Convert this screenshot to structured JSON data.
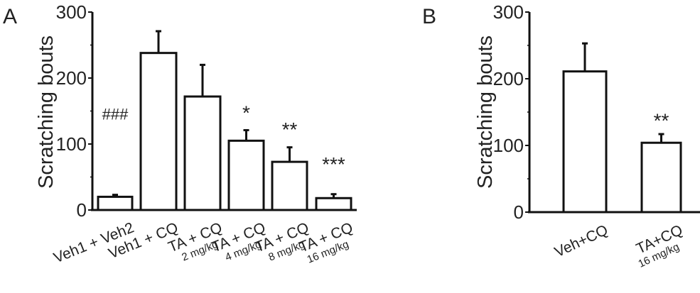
{
  "chart_data": [
    {
      "panel": "A",
      "type": "bar",
      "ylabel": "Scratching bouts",
      "ylim": [
        0,
        300
      ],
      "yticks": [
        "0",
        "100",
        "200",
        "300"
      ],
      "minor_ticks": [
        50,
        150,
        250
      ],
      "categories": [
        {
          "label": "Veh1 + Veh2",
          "sub": ""
        },
        {
          "label": "Veh1 + CQ",
          "sub": ""
        },
        {
          "label": "TA + CQ",
          "sub": "2 mg/kg"
        },
        {
          "label": "TA + CQ",
          "sub": "4 mg/kg"
        },
        {
          "label": "TA + CQ",
          "sub": "8 mg/kg"
        },
        {
          "label": "TA + CQ",
          "sub": "16 mg/kg"
        }
      ],
      "values": [
        20,
        238,
        172,
        105,
        73,
        18
      ],
      "error_upper": [
        23,
        271,
        220,
        121,
        95,
        24
      ],
      "annotations": [
        "###",
        "",
        "",
        "*",
        "**",
        "***"
      ],
      "annotation_y": [
        150,
        null,
        null,
        150,
        125,
        72
      ]
    },
    {
      "panel": "B",
      "type": "bar",
      "ylabel": "Scratching bouts",
      "ylim": [
        0,
        300
      ],
      "yticks": [
        "0",
        "100",
        "200",
        "300"
      ],
      "minor_ticks": [
        50,
        150,
        250
      ],
      "categories": [
        {
          "label": "Veh+CQ",
          "sub": ""
        },
        {
          "label": "TA+CQ",
          "sub": "16 mg/kg"
        }
      ],
      "values": [
        211,
        104
      ],
      "error_upper": [
        253,
        117
      ],
      "annotations": [
        "",
        "**"
      ],
      "annotation_y": [
        null,
        140
      ]
    }
  ]
}
